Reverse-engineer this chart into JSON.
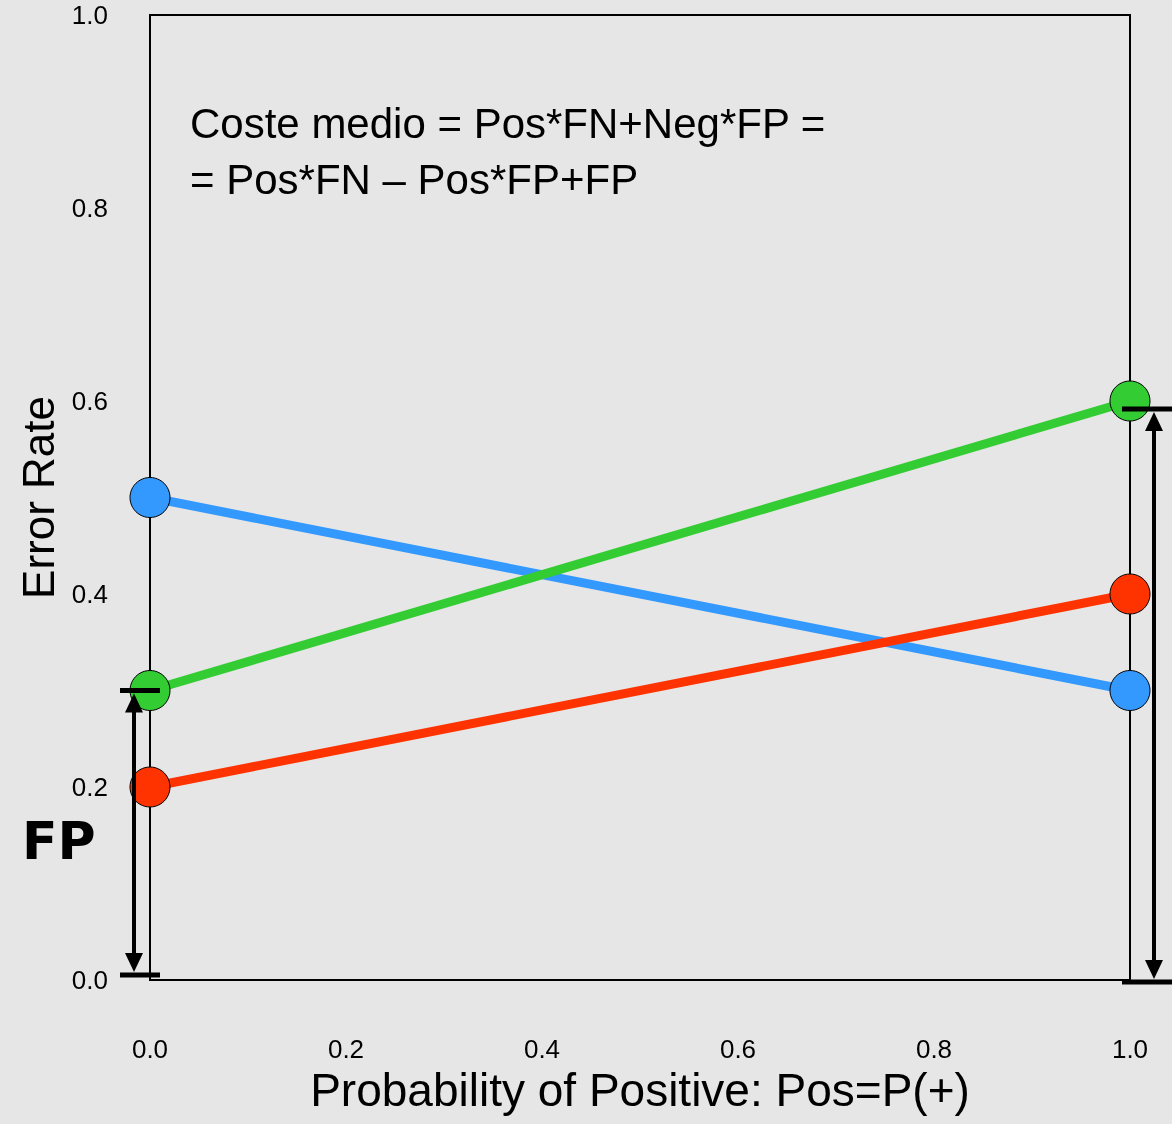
{
  "chart_data": {
    "type": "line",
    "xlabel": "Probability of Positive: Pos=P(+)",
    "ylabel": "Error Rate",
    "x": [
      0,
      1
    ],
    "series": [
      {
        "color": "#3399ff",
        "values": [
          0.5,
          0.3
        ]
      },
      {
        "color": "#33cc33",
        "values": [
          0.3,
          0.6
        ]
      },
      {
        "color": "#ff3300",
        "values": [
          0.2,
          0.4
        ]
      }
    ],
    "xlim": [
      0,
      1
    ],
    "ylim": [
      0,
      1
    ],
    "xticks": [
      {
        "value": 0,
        "label": "0.0"
      },
      {
        "value": 0.2,
        "label": "0.2"
      },
      {
        "value": 0.4,
        "label": "0.4"
      },
      {
        "value": 0.6,
        "label": "0.6"
      },
      {
        "value": 0.8,
        "label": "0.8"
      },
      {
        "value": 1,
        "label": "1.0"
      }
    ],
    "yticks": [
      {
        "value": 0,
        "label": "0.0"
      },
      {
        "value": 0.2,
        "label": "0.2"
      },
      {
        "value": 0.4,
        "label": "0.4"
      },
      {
        "value": 0.6,
        "label": "0.6"
      },
      {
        "value": 0.8,
        "label": "0.8"
      },
      {
        "value": 1,
        "label": "1.0"
      }
    ],
    "annotations": [
      "Coste medio = Pos*FN+Neg*FP =",
      "= Pos*FN – Pos*FP+FP",
      "FP"
    ],
    "grid": false,
    "marker": "circle",
    "line_style": "solid"
  }
}
